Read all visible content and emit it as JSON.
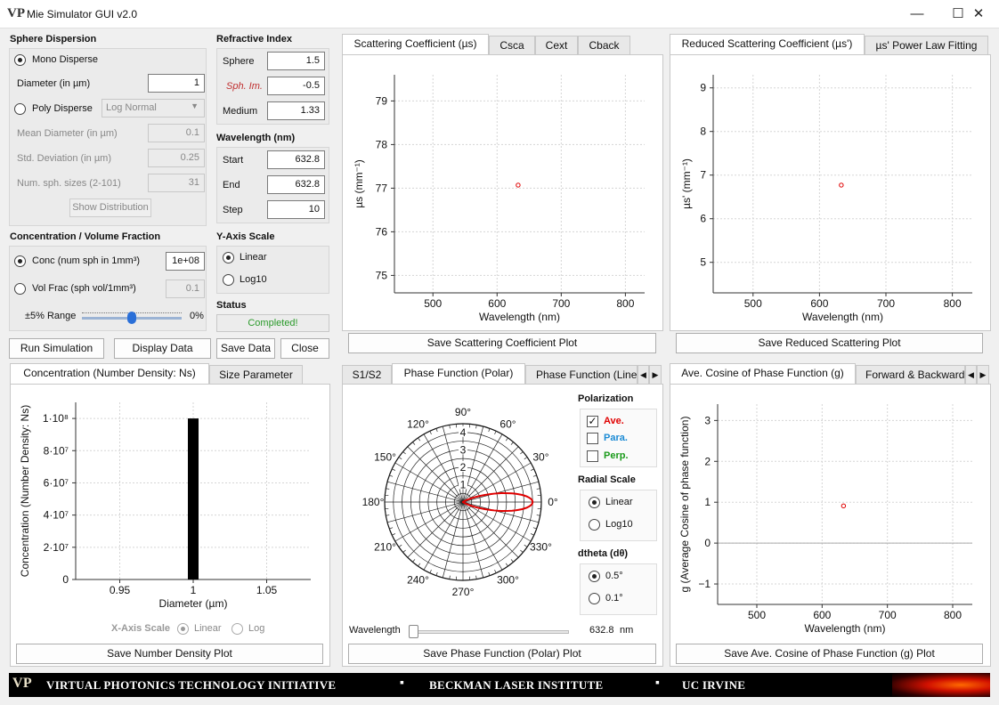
{
  "window": {
    "title": "Mie Simulator GUI v2.0",
    "app_icon": "VP",
    "minimize": "—",
    "maximize": "☐",
    "close": "✕"
  },
  "sphere": {
    "heading": "Sphere Dispersion",
    "mono_label": "Mono Disperse",
    "diameter_label": "Diameter (in µm)",
    "diameter_value": "1",
    "poly_label": "Poly Disperse",
    "dist_select": "Log Normal",
    "mean_label": "Mean Diameter (in µm)",
    "mean_value": "0.1",
    "std_label": "Std. Deviation (in µm)",
    "std_value": "0.25",
    "num_label": "Num. sph. sizes (2-101)",
    "num_value": "31",
    "show_dist": "Show Distribution"
  },
  "refractive": {
    "heading": "Refractive Index",
    "sphere_label": "Sphere",
    "sphere_value": "1.5",
    "im_label": "Sph. Im.",
    "im_value": "-0.5",
    "medium_label": "Medium",
    "medium_value": "1.33"
  },
  "wavelength": {
    "heading": "Wavelength (nm)",
    "start_label": "Start",
    "start_value": "632.8",
    "end_label": "End",
    "end_value": "632.8",
    "step_label": "Step",
    "step_value": "10"
  },
  "concentration": {
    "heading": "Concentration / Volume Fraction",
    "conc_label": "Conc (num sph in 1mm³)",
    "conc_value": "1e+08",
    "vol_label": "Vol Frac (sph vol/1mm³)",
    "vol_value": "0.1",
    "range_label": "±5% Range",
    "range_value": "0%",
    "range_fraction": 0.5
  },
  "yaxis": {
    "heading": "Y-Axis Scale",
    "linear": "Linear",
    "log10": "Log10"
  },
  "status": {
    "heading": "Status",
    "text": "Completed!"
  },
  "buttons": {
    "run": "Run Simulation",
    "display": "Display Data",
    "save": "Save Data",
    "close": "Close"
  },
  "scatter_tabs": [
    "Scattering Coefficient (µs)",
    "Csca",
    "Cext",
    "Cback"
  ],
  "reduced_tabs": [
    "Reduced Scattering Coefficient (µs')",
    "µs' Power Law Fitting"
  ],
  "conc_tabs": [
    "Concentration (Number Density: Ns)",
    "Size Parameter"
  ],
  "phase_tabs": [
    "S1/S2",
    "Phase Function (Polar)",
    "Phase Function (Line"
  ],
  "g_tabs": [
    "Ave. Cosine of Phase Function (g)",
    "Forward & Backward"
  ],
  "save_buttons": {
    "scatter": "Save Scattering Coefficient Plot",
    "reduced": "Save Reduced Scattering Plot",
    "density": "Save Number Density Plot",
    "phase": "Save Phase Function (Polar) Plot",
    "g": "Save Ave. Cosine of Phase Function (g) Plot"
  },
  "xaxis_scale": {
    "label": "X-Axis Scale",
    "linear": "Linear",
    "log": "Log"
  },
  "polarization": {
    "heading": "Polarization",
    "ave": "Ave.",
    "para": "Para.",
    "perp": "Perp.",
    "ave_color": "#e00000",
    "para_color": "#1a8ad4",
    "perp_color": "#1a9a1a"
  },
  "radial_scale": {
    "heading": "Radial Scale",
    "linear": "Linear",
    "log10": "Log10"
  },
  "dtheta": {
    "heading": "dtheta (dθ)",
    "opt1": "0.5°",
    "opt2": "0.1°"
  },
  "wavelength_slider": {
    "label": "Wavelength",
    "value": "632.8",
    "unit": "nm"
  },
  "footer": {
    "vp": "VP",
    "t1": "VIRTUAL PHOTONICS TECHNOLOGY INITIATIVE",
    "t2": "BECKMAN LASER INSTITUTE",
    "t3": "UC IRVINE"
  },
  "chart_data": [
    {
      "type": "scatter",
      "id": "scattering",
      "xlabel": "Wavelength (nm)",
      "ylabel": "µs (mm⁻¹)",
      "xlim": [
        440,
        830
      ],
      "ylim": [
        74.6,
        79.6
      ],
      "xticks": [
        500,
        600,
        700,
        800
      ],
      "yticks": [
        75,
        76,
        77,
        78,
        79
      ],
      "points": [
        {
          "x": 632.8,
          "y": 77.07
        }
      ],
      "grid": true,
      "marker_color": "#e00000"
    },
    {
      "type": "scatter",
      "id": "reduced",
      "xlabel": "Wavelength (nm)",
      "ylabel": "µs' (mm⁻¹)",
      "xlim": [
        440,
        830
      ],
      "ylim": [
        4.3,
        9.3
      ],
      "xticks": [
        500,
        600,
        700,
        800
      ],
      "yticks": [
        5,
        6,
        7,
        8,
        9
      ],
      "points": [
        {
          "x": 632.8,
          "y": 6.77
        }
      ],
      "grid": true,
      "marker_color": "#e00000"
    },
    {
      "type": "bar",
      "id": "density",
      "xlabel": "Diameter (µm)",
      "ylabel": "Concentration (Number Density: Ns)",
      "xlim": [
        0.92,
        1.08
      ],
      "ylim": [
        0,
        110000000
      ],
      "xticks": [
        0.95,
        1,
        1.05
      ],
      "yticks": [
        "0",
        "2·10⁷",
        "4·10⁷",
        "6·10⁷",
        "8·10⁷",
        "1·10⁸"
      ],
      "bars": [
        {
          "x": 1,
          "y": 100000000
        }
      ],
      "grid": true
    },
    {
      "type": "polar",
      "id": "phase",
      "angles": [
        "0°",
        "30°",
        "60°",
        "90°",
        "120°",
        "150°",
        "180°",
        "210°",
        "240°",
        "270°",
        "300°",
        "330°"
      ],
      "radial_ticks": [
        "1",
        "2",
        "3",
        "4"
      ],
      "rmax": 4.5,
      "series": [
        {
          "name": "Ave.",
          "peak": 4.0,
          "color": "#e00000"
        }
      ]
    },
    {
      "type": "scatter",
      "id": "gplot",
      "xlabel": "Wavelength (nm)",
      "ylabel": "g (Average Cosine of phase function)",
      "xlim": [
        440,
        830
      ],
      "ylim": [
        -1.5,
        3.4
      ],
      "xticks": [
        500,
        600,
        700,
        800
      ],
      "yticks": [
        -1,
        0,
        1,
        2,
        3
      ],
      "points": [
        {
          "x": 632.8,
          "y": 0.91
        }
      ],
      "grid": true,
      "marker_color": "#e00000"
    }
  ]
}
